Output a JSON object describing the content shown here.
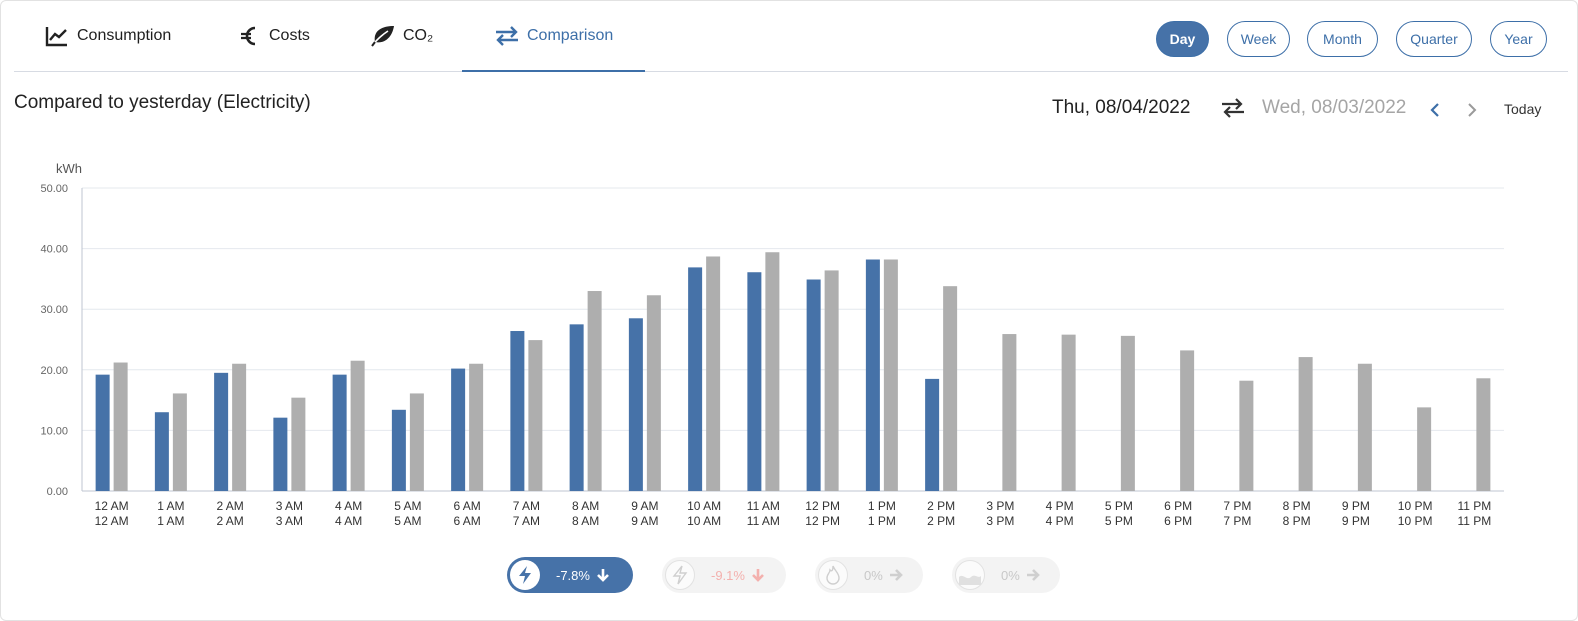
{
  "tabs": [
    {
      "label": "Consumption",
      "icon": "line-chart-icon"
    },
    {
      "label": "Costs",
      "icon": "euro-icon"
    },
    {
      "label": "CO₂",
      "icon": "leaf-icon"
    },
    {
      "label": "Comparison",
      "icon": "swap-arrows-icon",
      "active": true
    }
  ],
  "periods": [
    {
      "label": "Day",
      "active": true
    },
    {
      "label": "Week"
    },
    {
      "label": "Month"
    },
    {
      "label": "Quarter"
    },
    {
      "label": "Year"
    }
  ],
  "subtitle": "Compared to yesterday (Electricity)",
  "date_nav": {
    "current": "Thu, 08/04/2022",
    "compare": "Wed, 08/03/2022",
    "today_label": "Today"
  },
  "colors": {
    "accent": "#3d6fa8",
    "current_series": "#4672a8",
    "compare_series": "#aeaeae",
    "negative": "#f3b0ad"
  },
  "chart_data": {
    "type": "bar",
    "unit": "kWh",
    "ylim": [
      0,
      50
    ],
    "yticks": [
      "0.00",
      "10.00",
      "20.00",
      "30.00",
      "40.00",
      "50.00"
    ],
    "grid": true,
    "categories": [
      "12 AM",
      "1 AM",
      "2 AM",
      "3 AM",
      "4 AM",
      "5 AM",
      "6 AM",
      "7 AM",
      "8 AM",
      "9 AM",
      "10 AM",
      "11 AM",
      "12 PM",
      "1 PM",
      "2 PM",
      "3 PM",
      "4 PM",
      "5 PM",
      "6 PM",
      "7 PM",
      "8 PM",
      "9 PM",
      "10 PM",
      "11 PM"
    ],
    "categories_compare": [
      "12 AM",
      "1 AM",
      "2 AM",
      "3 AM",
      "4 AM",
      "5 AM",
      "6 AM",
      "7 AM",
      "8 AM",
      "9 AM",
      "10 AM",
      "11 AM",
      "12 PM",
      "1 PM",
      "2 PM",
      "3 PM",
      "4 PM",
      "5 PM",
      "6 PM",
      "7 PM",
      "8 PM",
      "9 PM",
      "10 PM",
      "11 PM"
    ],
    "series": [
      {
        "values": [
          19.2,
          13.0,
          19.5,
          12.1,
          19.2,
          13.4,
          20.2,
          26.4,
          27.5,
          28.5,
          36.9,
          36.1,
          34.9,
          38.2,
          18.5,
          null,
          null,
          null,
          null,
          null,
          null,
          null,
          null,
          null
        ]
      },
      {
        "values": [
          21.2,
          16.1,
          21.0,
          15.4,
          21.5,
          16.1,
          21.0,
          24.9,
          33.0,
          32.3,
          38.7,
          39.4,
          36.4,
          38.2,
          33.8,
          25.9,
          25.8,
          25.6,
          23.2,
          18.2,
          22.1,
          21.0,
          13.8,
          18.6
        ]
      }
    ]
  },
  "summary": [
    {
      "icon": "bolt-icon",
      "value": "-7.8%",
      "arrow": "arrow-down-icon",
      "active": true
    },
    {
      "icon": "bolt-icon",
      "value": "-9.1%",
      "arrow": "arrow-down-icon"
    },
    {
      "icon": "flame-icon",
      "value": "0%",
      "arrow": "arrow-right-icon"
    },
    {
      "icon": "water-icon",
      "value": "0%",
      "arrow": "arrow-right-icon"
    }
  ]
}
